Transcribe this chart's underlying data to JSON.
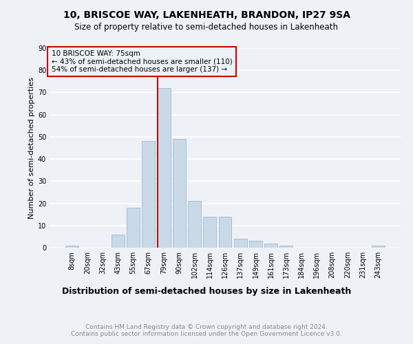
{
  "title": "10, BRISCOE WAY, LAKENHEATH, BRANDON, IP27 9SA",
  "subtitle": "Size of property relative to semi-detached houses in Lakenheath",
  "xlabel": "Distribution of semi-detached houses by size in Lakenheath",
  "ylabel": "Number of semi-detached properties",
  "footer": "Contains HM Land Registry data © Crown copyright and database right 2024.\nContains public sector information licensed under the Open Government Licence v3.0.",
  "bin_labels": [
    "8sqm",
    "20sqm",
    "32sqm",
    "43sqm",
    "55sqm",
    "67sqm",
    "79sqm",
    "90sqm",
    "102sqm",
    "114sqm",
    "126sqm",
    "137sqm",
    "149sqm",
    "161sqm",
    "173sqm",
    "184sqm",
    "196sqm",
    "208sqm",
    "220sqm",
    "231sqm",
    "243sqm"
  ],
  "bar_heights": [
    1,
    0,
    0,
    6,
    18,
    48,
    72,
    49,
    21,
    14,
    14,
    4,
    3,
    2,
    1,
    0,
    0,
    0,
    0,
    0,
    1
  ],
  "bar_color": "#c9d9e8",
  "bar_edge_color": "#a0b8cc",
  "vline_color": "#cc0000",
  "annotation_text": "10 BRISCOE WAY: 75sqm\n← 43% of semi-detached houses are smaller (110)\n54% of semi-detached houses are larger (137) →",
  "annotation_box_edgecolor": "#cc0000",
  "annotation_fontsize": 7.5,
  "ylim": [
    0,
    90
  ],
  "yticks": [
    0,
    10,
    20,
    30,
    40,
    50,
    60,
    70,
    80,
    90
  ],
  "title_fontsize": 10,
  "subtitle_fontsize": 8.5,
  "xlabel_fontsize": 9,
  "ylabel_fontsize": 8,
  "footer_fontsize": 6.5,
  "tick_fontsize": 7,
  "background_color": "#eef2f7",
  "grid_color": "#ffffff"
}
